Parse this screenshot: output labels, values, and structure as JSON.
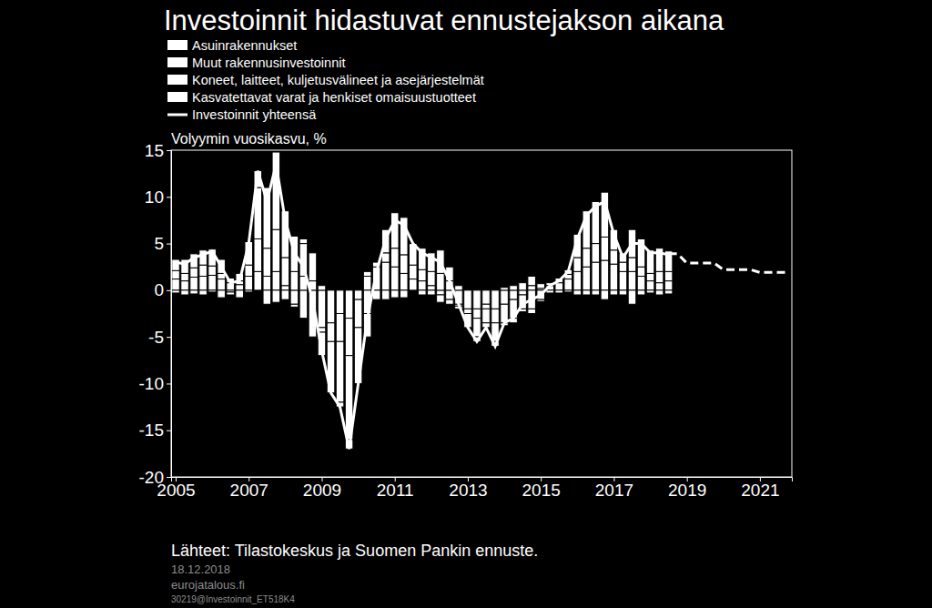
{
  "chart_data": {
    "type": "bar",
    "stacked": true,
    "title": "Investoinnit hidastuvat ennustejakson aikana",
    "y_label": "Volyymin vuosikasvu, %",
    "source": "Lähteet: Tilastokeskus ja Suomen Pankin ennuste.",
    "notes": [
      "18.12.2018",
      "eurojatalous.fi",
      "30219@Investoinnit_ET518K4"
    ],
    "legend": "top left",
    "grid": false,
    "xlim": [
      2004.875,
      2021.875
    ],
    "xticks": [
      2005,
      2007,
      2009,
      2011,
      2013,
      2015,
      2017,
      2019,
      2021
    ],
    "ylim": [
      -20,
      15
    ],
    "yticks": [
      -20,
      -15,
      -10,
      -5,
      0,
      5,
      10,
      15
    ],
    "x": [
      2005,
      2005.25,
      2005.5,
      2005.75,
      2006,
      2006.25,
      2006.5,
      2006.75,
      2007,
      2007.25,
      2007.5,
      2007.75,
      2008,
      2008.25,
      2008.5,
      2008.75,
      2009,
      2009.25,
      2009.5,
      2009.75,
      2010,
      2010.25,
      2010.5,
      2010.75,
      2011,
      2011.25,
      2011.5,
      2011.75,
      2012,
      2012.25,
      2012.5,
      2012.75,
      2013,
      2013.25,
      2013.5,
      2013.75,
      2014,
      2014.25,
      2014.5,
      2014.75,
      2015,
      2015.25,
      2015.5,
      2015.75,
      2016,
      2016.25,
      2016.5,
      2016.75,
      2017,
      2017.25,
      2017.5,
      2017.75,
      2018,
      2018.25,
      2018.5,
      2018.75,
      2019,
      2019.25,
      2019.5,
      2019.75,
      2020,
      2020.25,
      2020.5,
      2020.75,
      2021,
      2021.25,
      2021.5,
      2021.75
    ],
    "series": [
      {
        "name": "Asuinrakennukset",
        "type": "bar",
        "color": "#ffffff",
        "values": [
          1.2,
          1.0,
          1.4,
          1.5,
          1.6,
          1.2,
          0.8,
          0.6,
          1.5,
          2.0,
          1.5,
          2.0,
          0.5,
          -1.5,
          -3.0,
          -5.0,
          -4.0,
          -3.5,
          -2.5,
          -3.0,
          -1.0,
          1.5,
          2.5,
          3.0,
          2.5,
          1.8,
          1.2,
          1.0,
          0.5,
          -0.5,
          -1.0,
          -1.5,
          -2.0,
          -2.0,
          -1.5,
          -2.0,
          -1.5,
          -1.0,
          -0.5,
          0.5,
          0.2,
          0.5,
          0.8,
          1.2,
          2.0,
          2.5,
          3.0,
          3.2,
          2.8,
          2.0,
          2.0,
          1.5,
          1.0,
          0.8,
          1.0,
          null,
          null,
          null,
          null,
          null,
          null,
          null,
          null,
          null,
          null,
          null,
          null,
          null
        ]
      },
      {
        "name": "Muut rakennusinvestoinnit",
        "type": "bar",
        "color": "#ffffff",
        "values": [
          0.9,
          0.8,
          1.0,
          1.2,
          1.0,
          0.6,
          0.5,
          0.4,
          1.2,
          3.5,
          3.0,
          4.5,
          3.0,
          2.0,
          1.5,
          1.0,
          -0.5,
          -2.0,
          -3.0,
          -4.0,
          -3.0,
          -2.5,
          -1.0,
          1.0,
          2.0,
          2.0,
          1.5,
          1.2,
          1.5,
          1.8,
          1.0,
          0.5,
          -0.5,
          -1.0,
          -0.5,
          -1.5,
          0.3,
          0.5,
          0.8,
          1.0,
          0.5,
          0.3,
          0.5,
          0.5,
          1.5,
          2.0,
          2.0,
          2.5,
          1.5,
          1.0,
          1.5,
          1.0,
          0.8,
          1.2,
          1.0,
          null,
          null,
          null,
          null,
          null,
          null,
          null,
          null,
          null,
          null,
          null,
          null,
          null
        ]
      },
      {
        "name": "Koneet, laitteet, kuljetusvälineet ja asejärjestelmät",
        "type": "bar",
        "color": "#ffffff",
        "values": [
          1.2,
          1.5,
          1.5,
          1.6,
          1.8,
          1.5,
          -0.2,
          0.8,
          2.5,
          5.5,
          6.5,
          8.3,
          5.0,
          3.8,
          3.5,
          3.0,
          -2.5,
          -5.5,
          -6.5,
          -9.0,
          -6.0,
          -2.5,
          0.5,
          2.5,
          3.8,
          4.0,
          2.3,
          2.3,
          2.0,
          2.5,
          1.5,
          -0.2,
          -1.5,
          -2.0,
          -1.5,
          -2.0,
          -2.0,
          -2.0,
          -1.5,
          -2.0,
          -1.0,
          0,
          -0.3,
          0.5,
          2.5,
          4.0,
          4.5,
          4.8,
          2.2,
          1.0,
          3.0,
          3.0,
          2.5,
          2.5,
          2.2,
          null,
          null,
          null,
          null,
          null,
          null,
          null,
          null,
          null,
          null,
          null,
          null,
          null
        ]
      },
      {
        "name": "Kasvatettavat varat ja henkiset omaisuustuotteet",
        "type": "bar",
        "color": "#ffffff",
        "values": [
          -0.3,
          -0.5,
          -0.4,
          -0.5,
          -0.2,
          -0.8,
          -0.3,
          -0.8,
          -0.2,
          1.8,
          -1.5,
          -1.3,
          -1.0,
          -0.3,
          0.5,
          0,
          0.5,
          0,
          -0.5,
          -1.0,
          0,
          0.5,
          0,
          -1.0,
          -0.8,
          -0.8,
          0,
          -0.5,
          -0.5,
          -0.8,
          -0.5,
          -0.3,
          0,
          -0.5,
          -0.5,
          -0.5,
          -0.3,
          -0.5,
          -0.3,
          -0.5,
          -0.2,
          -0.3,
          0,
          -0.2,
          -0.5,
          -0.5,
          -0.5,
          -1.0,
          -0.5,
          -0.5,
          -1.5,
          -0.5,
          -0.3,
          -0.5,
          -0.4,
          null,
          null,
          null,
          null,
          null,
          null,
          null,
          null,
          null,
          null,
          null,
          null,
          null
        ]
      },
      {
        "name": "Investoinnit yhteensä",
        "type": "line",
        "line_style": "solid",
        "color": "#ffffff",
        "values": [
          3.0,
          2.8,
          3.5,
          3.8,
          4.2,
          2.5,
          0.8,
          1.0,
          5.0,
          12.8,
          9.5,
          13.5,
          7.5,
          4.0,
          2.5,
          -1.0,
          -6.5,
          -11.0,
          -12.5,
          -17.0,
          -10.0,
          -3.0,
          2.0,
          5.5,
          7.5,
          7.0,
          5.0,
          4.0,
          3.5,
          3.0,
          1.0,
          -1.5,
          -4.0,
          -5.5,
          -4.0,
          -6.0,
          -3.5,
          -3.0,
          -1.5,
          -1.0,
          -0.5,
          0.5,
          1.0,
          2.0,
          5.5,
          8.0,
          9.0,
          9.5,
          6.0,
          3.5,
          5.0,
          5.0,
          4.0,
          4.0,
          3.8,
          null,
          null,
          null,
          null,
          null,
          null,
          null,
          null,
          null,
          null,
          null,
          null,
          null
        ]
      },
      {
        "type": "line",
        "line_style": "dashed",
        "color": "#ffffff",
        "values": [
          null,
          null,
          null,
          null,
          null,
          null,
          null,
          null,
          null,
          null,
          null,
          null,
          null,
          null,
          null,
          null,
          null,
          null,
          null,
          null,
          null,
          null,
          null,
          null,
          null,
          null,
          null,
          null,
          null,
          null,
          null,
          null,
          null,
          null,
          null,
          null,
          null,
          null,
          null,
          null,
          null,
          null,
          null,
          null,
          null,
          null,
          null,
          null,
          null,
          null,
          null,
          null,
          null,
          null,
          3.9,
          3.9,
          2.9,
          2.9,
          2.9,
          2.9,
          2.2,
          2.2,
          2.2,
          2.2,
          1.9,
          1.9,
          1.9,
          1.9
        ]
      }
    ]
  }
}
